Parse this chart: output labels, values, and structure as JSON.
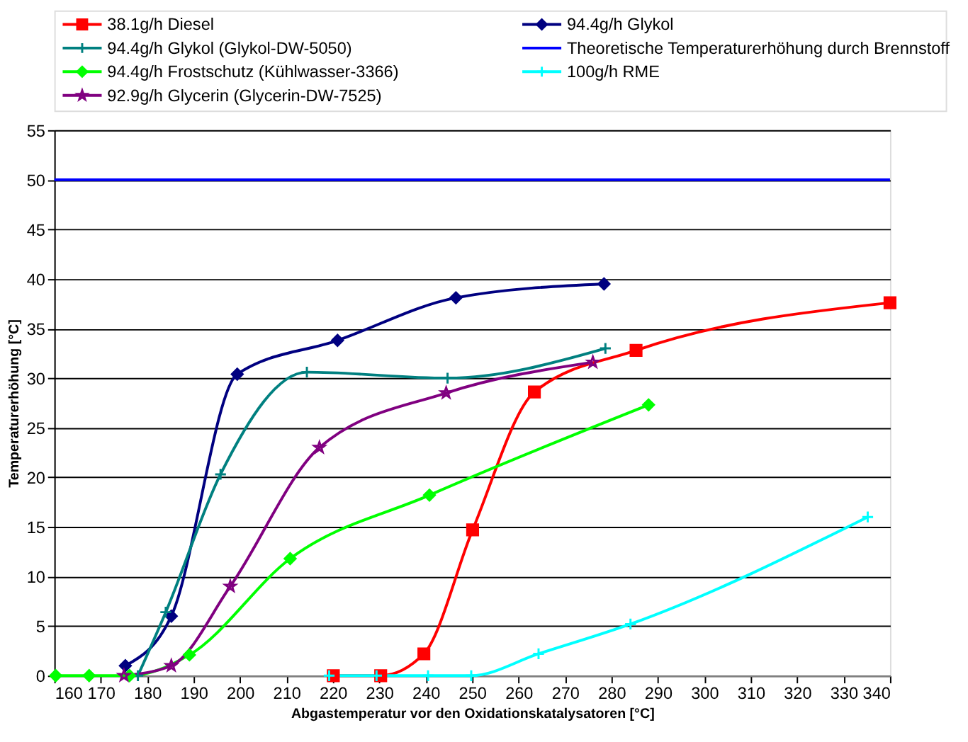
{
  "chart_data": {
    "type": "line",
    "xlabel": "Abgastemperatur vor den Oxidationskatalysatoren [°C]",
    "ylabel": "Temperaturerhöhung [°C]",
    "xlim": [
      160,
      340
    ],
    "xticks": [
      160,
      170,
      180,
      190,
      200,
      210,
      220,
      230,
      240,
      250,
      260,
      270,
      280,
      290,
      300,
      310,
      320,
      330,
      340
    ],
    "ylim": [
      0,
      55
    ],
    "yticks": [
      0,
      5,
      10,
      15,
      20,
      25,
      30,
      35,
      40,
      45,
      50,
      55
    ],
    "grid": "y",
    "legend": "top",
    "series": [
      {
        "name": "38.1g/h Diesel",
        "color": "#ff0000",
        "marker": "square",
        "x": [
          220.1,
          230.3,
          239.6,
          250.1,
          263.4,
          285.3,
          340
        ],
        "values": [
          0,
          0,
          2.2,
          14.7,
          28.6,
          32.8,
          37.6
        ]
      },
      {
        "name": "94.4g/h Glykol",
        "color": "#000080",
        "marker": "diamond",
        "x": [
          175.3,
          185.2,
          199.4,
          221,
          246.5,
          278.4
        ],
        "values": [
          1.0,
          6.0,
          30.4,
          33.8,
          38.1,
          39.5
        ]
      },
      {
        "name": "94.4g/h Glykol (Glykol-DW-5050)",
        "color": "#008080",
        "marker": "cross",
        "x": [
          178,
          184,
          195.8,
          214.4,
          244.7,
          278.7
        ],
        "values": [
          0,
          6.4,
          20.3,
          30.6,
          30.0,
          33.0
        ]
      },
      {
        "name": "Theoretische Temperaturerhöhung durch Brennstoff",
        "color": "#0000ff",
        "marker": "none",
        "x": [
          160,
          340
        ],
        "values": [
          50,
          50
        ]
      },
      {
        "name": "94.4g/h Frostschutz (Kühlwasser-3366)",
        "color": "#00ff00",
        "marker": "diamond",
        "x": [
          160.3,
          167.5,
          176.2,
          189.1,
          210.8,
          240.8,
          288
        ],
        "values": [
          0,
          0,
          0,
          2.1,
          11.8,
          18.2,
          27.3
        ]
      },
      {
        "name": "100g/h RME",
        "color": "#00ffff",
        "marker": "cross",
        "x": [
          219.2,
          229.4,
          240.5,
          249.8,
          264.3,
          284.1,
          335.2
        ],
        "values": [
          0,
          0,
          0,
          0,
          2.2,
          5.2,
          16.0
        ]
      },
      {
        "name": "92.9g/h Glycerin (Glycerin-DW-7525)",
        "color": "#800080",
        "marker": "star",
        "x": [
          175,
          185.2,
          197.9,
          217.1,
          244.4,
          276
        ],
        "values": [
          0,
          1.0,
          9.0,
          23.0,
          28.5,
          31.6
        ]
      }
    ]
  }
}
